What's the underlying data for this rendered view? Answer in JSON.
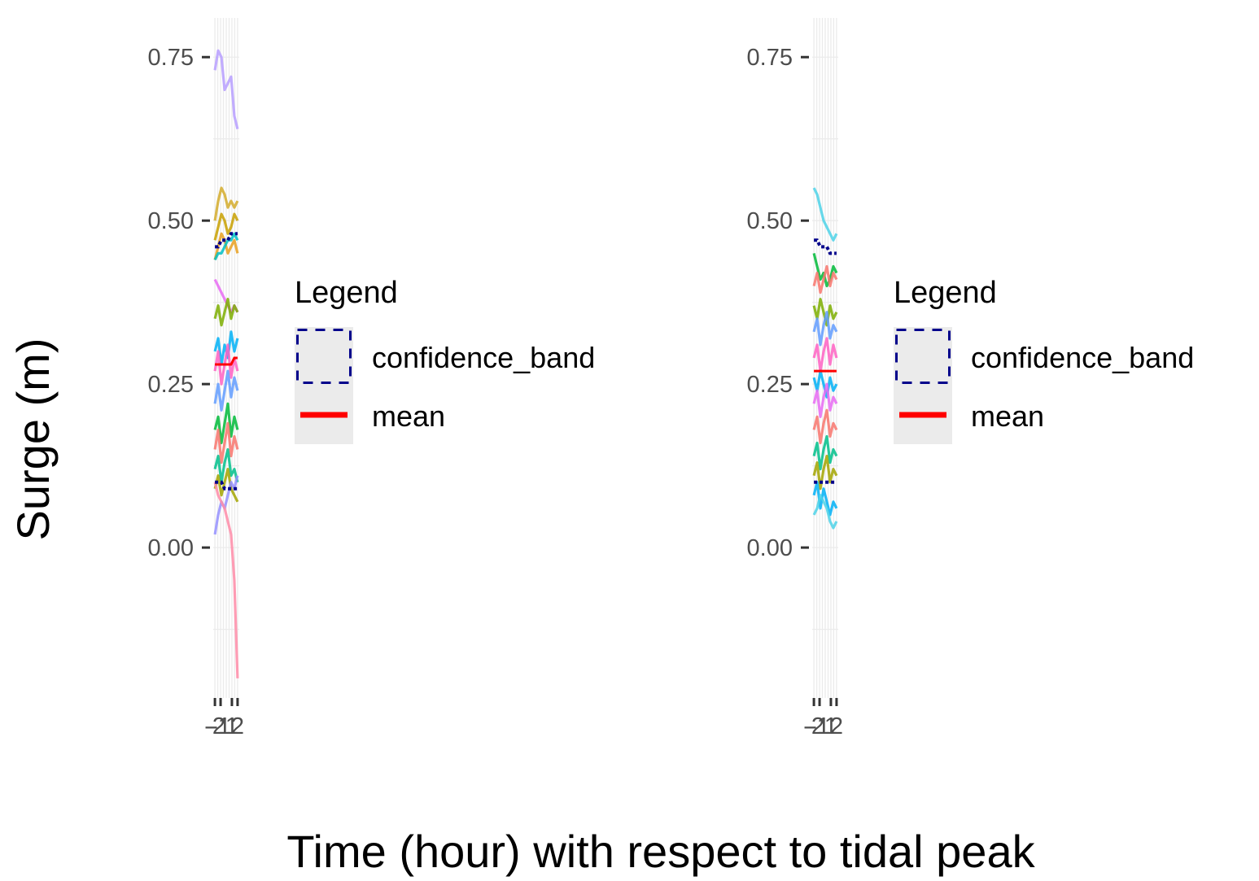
{
  "chart_data": {
    "type": "line",
    "xlabel": "Time (hour) with respect to tidal peak",
    "ylabel": "Surge (m)",
    "legend": {
      "title": "Legend",
      "placement": "right",
      "entries": [
        {
          "label": "confidence_band",
          "style": "dashed-box",
          "color": "#00008B"
        },
        {
          "label": "mean",
          "style": "line",
          "color": "#FF0000"
        }
      ]
    },
    "panels": [
      {
        "name": "left",
        "xlim": [
          -2.3,
          2.3
        ],
        "ylim": [
          -0.23,
          0.81
        ],
        "x_ticks": [
          -2,
          -1,
          1,
          2
        ],
        "x_tick_labels": [
          "-2",
          "-1",
          "1",
          "2"
        ],
        "y_ticks": [
          0.0,
          0.25,
          0.5,
          0.75
        ],
        "y_tick_labels": [
          "0.00",
          "0.25",
          "0.50",
          "0.75"
        ],
        "series": [
          {
            "color": "#B79FFF",
            "values": [
              0.73,
              0.76,
              0.75,
              0.7,
              0.71,
              0.72,
              0.66,
              0.64
            ]
          },
          {
            "color": "#D4AC2C",
            "values": [
              0.5,
              0.53,
              0.55,
              0.54,
              0.52,
              0.53,
              0.52,
              0.53
            ]
          },
          {
            "color": "#C8A000",
            "values": [
              0.47,
              0.49,
              0.51,
              0.5,
              0.48,
              0.49,
              0.51,
              0.5
            ]
          },
          {
            "color": "#E8A020",
            "values": [
              0.44,
              0.46,
              0.48,
              0.47,
              0.45,
              0.46,
              0.47,
              0.45
            ]
          },
          {
            "color": "#00BFC4",
            "values": [
              0.44,
              0.45,
              0.45,
              0.46,
              0.47,
              0.47,
              0.48,
              0.47
            ]
          },
          {
            "color": "#E76BF3",
            "values": [
              0.41,
              0.4,
              0.39,
              0.38,
              0.37,
              0.36,
              0.37,
              0.36
            ]
          },
          {
            "color": "#7CAE00",
            "values": [
              0.35,
              0.37,
              0.34,
              0.36,
              0.38,
              0.35,
              0.37,
              0.36
            ]
          },
          {
            "color": "#00B0F6",
            "values": [
              0.3,
              0.32,
              0.28,
              0.31,
              0.29,
              0.33,
              0.3,
              0.32
            ]
          },
          {
            "color": "#FF61C3",
            "values": [
              0.27,
              0.3,
              0.25,
              0.28,
              0.31,
              0.26,
              0.29,
              0.27
            ]
          },
          {
            "color": "#619CFF",
            "values": [
              0.22,
              0.25,
              0.21,
              0.24,
              0.27,
              0.23,
              0.26,
              0.24
            ]
          },
          {
            "color": "#00BA38",
            "values": [
              0.18,
              0.2,
              0.16,
              0.19,
              0.22,
              0.17,
              0.2,
              0.18
            ]
          },
          {
            "color": "#F8766D",
            "values": [
              0.15,
              0.18,
              0.13,
              0.16,
              0.19,
              0.14,
              0.17,
              0.15
            ]
          },
          {
            "color": "#00C08B",
            "values": [
              0.12,
              0.14,
              0.1,
              0.13,
              0.15,
              0.11,
              0.12,
              0.1
            ]
          },
          {
            "color": "#A3A500",
            "values": [
              0.09,
              0.11,
              0.08,
              0.1,
              0.12,
              0.09,
              0.08,
              0.07
            ]
          },
          {
            "color": "#9590FF",
            "values": [
              0.02,
              0.05,
              0.07,
              0.06,
              0.08,
              0.1,
              0.09,
              0.11
            ]
          },
          {
            "color": "#FF8CA8",
            "values": [
              0.1,
              0.08,
              0.07,
              0.06,
              0.04,
              0.02,
              -0.05,
              -0.2
            ]
          }
        ],
        "confidence_band": {
          "color": "#00008B",
          "upper": [
            0.46,
            0.46,
            0.47,
            0.47,
            0.47,
            0.48,
            0.48,
            0.48
          ],
          "lower": [
            0.1,
            0.1,
            0.1,
            0.09,
            0.09,
            0.09,
            0.09,
            0.09
          ]
        },
        "mean": {
          "color": "#FF0000",
          "values": [
            0.28,
            0.28,
            0.28,
            0.28,
            0.28,
            0.28,
            0.29,
            0.29
          ]
        }
      },
      {
        "name": "right",
        "xlim": [
          -2.3,
          2.3
        ],
        "ylim": [
          -0.23,
          0.81
        ],
        "x_ticks": [
          -2,
          -1,
          1,
          2
        ],
        "x_tick_labels": [
          "-2",
          "-1",
          "1",
          "2"
        ],
        "y_ticks": [
          0.0,
          0.25,
          0.5,
          0.75
        ],
        "y_tick_labels": [
          "0.00",
          "0.25",
          "0.50",
          "0.75"
        ],
        "series": [
          {
            "color": "#4DD2E8",
            "values": [
              0.55,
              0.54,
              0.52,
              0.5,
              0.49,
              0.48,
              0.47,
              0.48
            ]
          },
          {
            "color": "#00BA38",
            "values": [
              0.45,
              0.43,
              0.41,
              0.42,
              0.4,
              0.41,
              0.43,
              0.42
            ]
          },
          {
            "color": "#F8766D",
            "values": [
              0.4,
              0.42,
              0.39,
              0.41,
              0.43,
              0.4,
              0.42,
              0.41
            ]
          },
          {
            "color": "#7CAE00",
            "values": [
              0.37,
              0.35,
              0.38,
              0.36,
              0.34,
              0.37,
              0.35,
              0.36
            ]
          },
          {
            "color": "#619CFF",
            "values": [
              0.33,
              0.35,
              0.31,
              0.34,
              0.36,
              0.32,
              0.34,
              0.33
            ]
          },
          {
            "color": "#FF61C3",
            "values": [
              0.29,
              0.31,
              0.27,
              0.3,
              0.32,
              0.28,
              0.31,
              0.29
            ]
          },
          {
            "color": "#00B0F6",
            "values": [
              0.26,
              0.24,
              0.27,
              0.25,
              0.23,
              0.26,
              0.24,
              0.25
            ]
          },
          {
            "color": "#E76BF3",
            "values": [
              0.22,
              0.24,
              0.2,
              0.23,
              0.25,
              0.21,
              0.23,
              0.22
            ]
          },
          {
            "color": "#F8766D",
            "values": [
              0.18,
              0.2,
              0.16,
              0.19,
              0.21,
              0.17,
              0.19,
              0.18
            ]
          },
          {
            "color": "#00C08B",
            "values": [
              0.14,
              0.16,
              0.12,
              0.15,
              0.17,
              0.13,
              0.15,
              0.14
            ]
          },
          {
            "color": "#A3A500",
            "values": [
              0.11,
              0.13,
              0.09,
              0.12,
              0.14,
              0.1,
              0.12,
              0.11
            ]
          },
          {
            "color": "#00B0F6",
            "values": [
              0.08,
              0.1,
              0.06,
              0.09,
              0.07,
              0.05,
              0.07,
              0.06
            ]
          },
          {
            "color": "#4DD2E8",
            "values": [
              0.05,
              0.06,
              0.08,
              0.07,
              0.06,
              0.04,
              0.03,
              0.04
            ]
          }
        ],
        "confidence_band": {
          "color": "#00008B",
          "upper": [
            0.47,
            0.47,
            0.46,
            0.46,
            0.46,
            0.45,
            0.45,
            0.45
          ],
          "lower": [
            0.1,
            0.1,
            0.1,
            0.1,
            0.1,
            0.1,
            0.1,
            0.1
          ]
        },
        "mean": {
          "color": "#FF0000",
          "values": [
            0.27,
            0.27,
            0.27,
            0.27,
            0.27,
            0.27,
            0.27,
            0.27
          ]
        }
      }
    ]
  }
}
